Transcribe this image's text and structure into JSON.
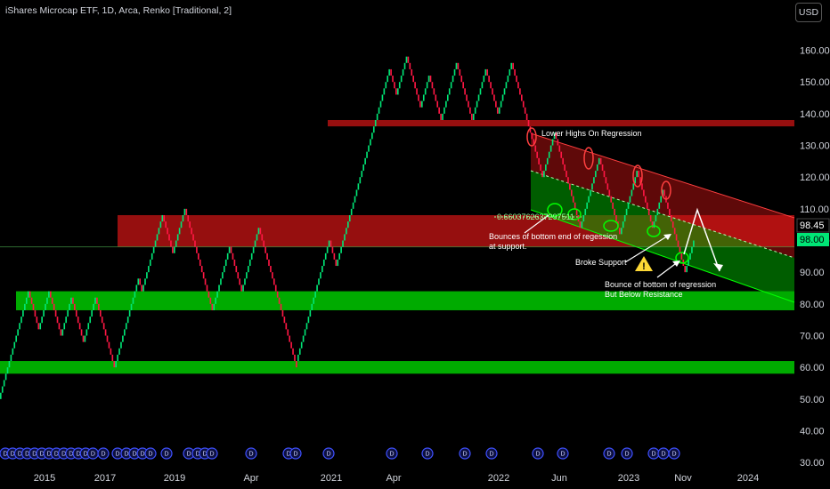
{
  "header": {
    "title": "iShares Microcap ETF, 1D, Arca, Renko [Traditional, 2]",
    "currency_button": "USD"
  },
  "price_badges": {
    "last": "98.45",
    "current": "98.00"
  },
  "colors": {
    "up": "#00e676",
    "down": "#ff1744",
    "zone_red": "#d31717",
    "zone_green": "#00c400",
    "dividend": "#3f51ff"
  },
  "chart_data": {
    "type": "renko",
    "y_axis": {
      "ylim": [
        25,
        168
      ],
      "ticks": [
        30,
        40,
        50,
        60,
        70,
        80,
        90,
        100,
        110,
        120,
        130,
        140,
        150,
        160
      ]
    },
    "y_tick_labels": [
      "30.00",
      "40.00",
      "50.00",
      "60.00",
      "70.00",
      "80.00",
      "90.00",
      "100.00",
      "110.00",
      "120.00",
      "130.00",
      "140.00",
      "150.00",
      "160.00"
    ],
    "x_tick_labels": [
      "2015",
      "2017",
      "2019",
      "Apr",
      "2021",
      "Apr",
      "2022",
      "Jun",
      "2023",
      "Nov",
      "2024"
    ],
    "brick_size": 2,
    "brick_closes": [
      52,
      54,
      56,
      58,
      60,
      62,
      64,
      66,
      68,
      70,
      72,
      74,
      76,
      78,
      80,
      82,
      84,
      82,
      80,
      78,
      76,
      74,
      72,
      74,
      76,
      78,
      80,
      82,
      84,
      82,
      80,
      78,
      76,
      74,
      72,
      70,
      72,
      74,
      76,
      78,
      80,
      82,
      80,
      78,
      76,
      74,
      72,
      70,
      68,
      70,
      72,
      74,
      76,
      78,
      80,
      82,
      80,
      78,
      76,
      74,
      72,
      70,
      68,
      66,
      64,
      62,
      60,
      62,
      64,
      66,
      68,
      70,
      72,
      74,
      76,
      78,
      80,
      82,
      84,
      86,
      88,
      86,
      84,
      86,
      88,
      90,
      92,
      94,
      96,
      98,
      100,
      102,
      104,
      106,
      108,
      106,
      104,
      102,
      100,
      98,
      96,
      98,
      100,
      102,
      104,
      106,
      108,
      110,
      108,
      106,
      104,
      102,
      100,
      98,
      96,
      94,
      92,
      90,
      88,
      86,
      84,
      82,
      80,
      78,
      80,
      82,
      84,
      86,
      88,
      90,
      92,
      94,
      96,
      98,
      96,
      94,
      92,
      90,
      88,
      86,
      84,
      86,
      88,
      90,
      92,
      94,
      96,
      98,
      100,
      102,
      104,
      102,
      100,
      98,
      96,
      94,
      92,
      90,
      88,
      86,
      84,
      82,
      80,
      78,
      76,
      74,
      72,
      70,
      68,
      66,
      64,
      62,
      60,
      64,
      66,
      68,
      70,
      72,
      74,
      76,
      78,
      80,
      82,
      84,
      86,
      88,
      90,
      92,
      94,
      96,
      98,
      100,
      98,
      96,
      94,
      92,
      94,
      96,
      98,
      100,
      102,
      104,
      106,
      108,
      110,
      112,
      114,
      116,
      118,
      120,
      122,
      124,
      126,
      128,
      130,
      132,
      134,
      136,
      138,
      140,
      142,
      144,
      146,
      148,
      150,
      152,
      154,
      152,
      150,
      148,
      146,
      148,
      150,
      152,
      154,
      156,
      158,
      156,
      154,
      152,
      150,
      148,
      146,
      144,
      142,
      144,
      146,
      148,
      150,
      152,
      150,
      148,
      146,
      144,
      142,
      140,
      138,
      140,
      142,
      144,
      146,
      148,
      150,
      152,
      154,
      156,
      154,
      152,
      150,
      148,
      146,
      144,
      142,
      140,
      138,
      140,
      142,
      144,
      146,
      148,
      150,
      152,
      154,
      152,
      150,
      148,
      146,
      144,
      142,
      140,
      142,
      144,
      146,
      148,
      150,
      152,
      154,
      156,
      154,
      152,
      150,
      148,
      146,
      144,
      142,
      140,
      138,
      136,
      134,
      132,
      130,
      128,
      126,
      124,
      122,
      120,
      122,
      124,
      126,
      128,
      130,
      132,
      134,
      132,
      130,
      128,
      126,
      124,
      122,
      120,
      118,
      116,
      114,
      112,
      110,
      108,
      106,
      104,
      106,
      108,
      110,
      112,
      114,
      116,
      118,
      120,
      122,
      124,
      126,
      124,
      122,
      120,
      118,
      116,
      114,
      112,
      110,
      108,
      106,
      104,
      102,
      104,
      106,
      108,
      110,
      112,
      114,
      116,
      118,
      120,
      122,
      120,
      118,
      116,
      114,
      112,
      110,
      108,
      106,
      104,
      106,
      108,
      110,
      112,
      114,
      116,
      114,
      112,
      110,
      108,
      106,
      104,
      102,
      100,
      98,
      96,
      94,
      92,
      90,
      92,
      94,
      96,
      98,
      100
    ],
    "zones": [
      {
        "name": "resistance-top",
        "color": "red",
        "y_low": 136,
        "y_high": 138
      },
      {
        "name": "resistance-mid",
        "color": "red",
        "y_low": 98,
        "y_high": 108
      },
      {
        "name": "support-mid",
        "color": "green",
        "y_low": 78,
        "y_high": 84
      },
      {
        "name": "support-low",
        "color": "green",
        "y_low": 58,
        "y_high": 62
      }
    ],
    "horizontal_line": 98,
    "dividend_marker": "D",
    "dividend_count": 40,
    "annotations": {
      "lower_highs": "Lower Highs On Regression",
      "fib_value": "0.6603762637297511",
      "bounces": [
        "Bounces of bottom end of regession",
        "at support."
      ],
      "broke_support": "Broke Support",
      "bounce_bottom": [
        "Bounce of bottom of regression",
        "But Below Resistance"
      ],
      "warning_icon": "⚠"
    }
  }
}
